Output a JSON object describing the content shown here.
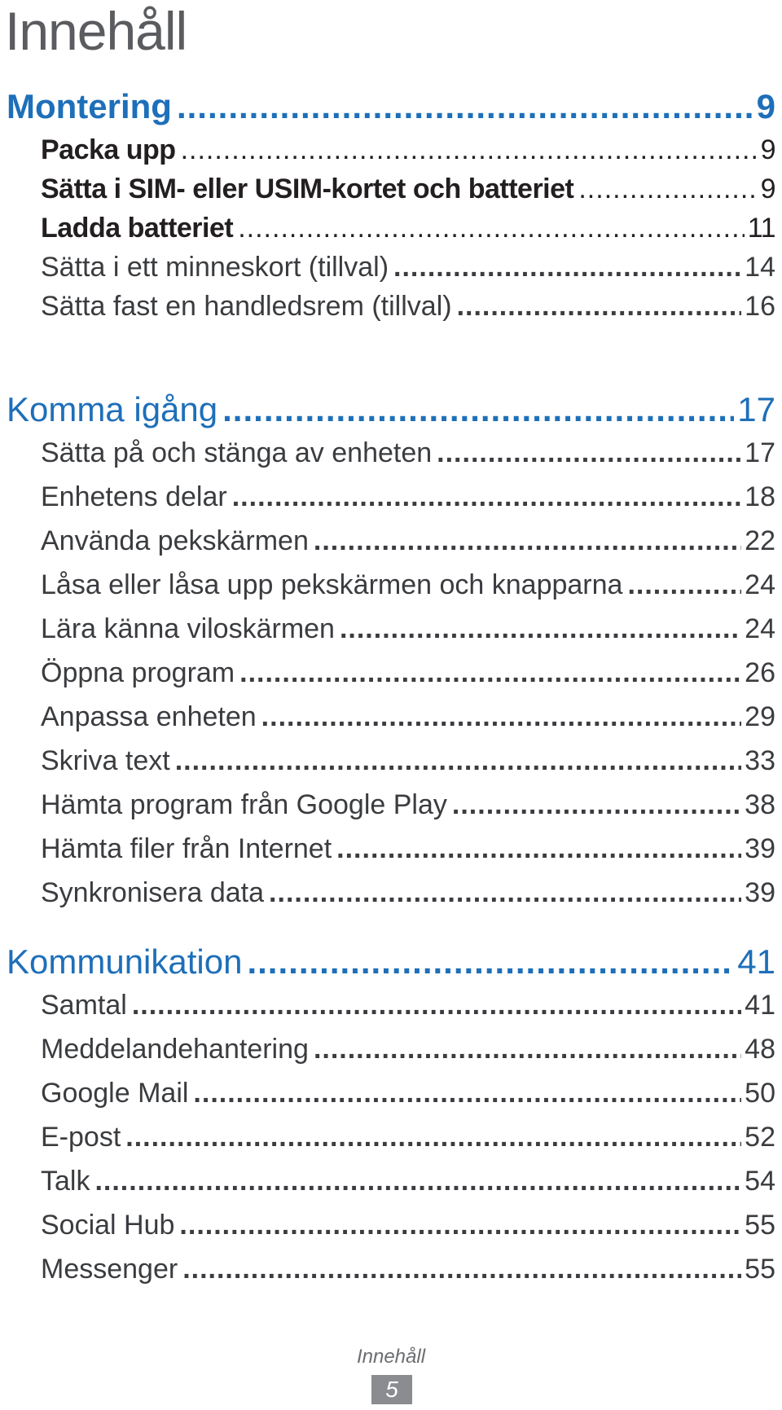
{
  "title": "Innehåll",
  "sections": [
    {
      "label": "Montering",
      "page": "9",
      "items": [
        {
          "label": "Packa upp",
          "page": "9"
        },
        {
          "label": "Sätta i SIM- eller USIM-kortet och batteriet",
          "page": "9"
        },
        {
          "label": "Ladda batteriet",
          "page": "11"
        },
        {
          "label": "Sätta i ett minneskort (tillval)",
          "page": "14"
        },
        {
          "label": "Sätta fast en handledsrem (tillval)",
          "page": "16"
        }
      ]
    },
    {
      "label": "Komma igång",
      "page": "17",
      "items": [
        {
          "label": "Sätta på och stänga av enheten",
          "page": "17"
        },
        {
          "label": "Enhetens delar",
          "page": "18"
        },
        {
          "label": "Använda pekskärmen",
          "page": "22"
        },
        {
          "label": "Låsa eller låsa upp pekskärmen och knapparna",
          "page": "24"
        },
        {
          "label": "Lära känna viloskärmen",
          "page": "24"
        },
        {
          "label": "Öppna program",
          "page": "26"
        },
        {
          "label": "Anpassa enheten",
          "page": "29"
        },
        {
          "label": "Skriva text",
          "page": "33"
        },
        {
          "label": "Hämta program från Google Play",
          "page": "38"
        },
        {
          "label": "Hämta filer från Internet",
          "page": "39"
        },
        {
          "label": "Synkronisera data",
          "page": "39"
        }
      ]
    },
    {
      "label": "Kommunikation",
      "page": "41",
      "items": [
        {
          "label": "Samtal",
          "page": "41"
        },
        {
          "label": "Meddelandehantering",
          "page": "48"
        },
        {
          "label": "Google Mail",
          "page": "50"
        },
        {
          "label": "E-post",
          "page": "52"
        },
        {
          "label": "Talk",
          "page": "54"
        },
        {
          "label": "Social Hub",
          "page": "55"
        },
        {
          "label": "Messenger",
          "page": "55"
        }
      ]
    }
  ],
  "footer": {
    "label": "Innehåll",
    "page": "5"
  },
  "colors": {
    "section_heading": "#1e6fb9",
    "title": "#5a5c5f",
    "text": "#231f20",
    "page_badge": "#8a8c8f"
  }
}
